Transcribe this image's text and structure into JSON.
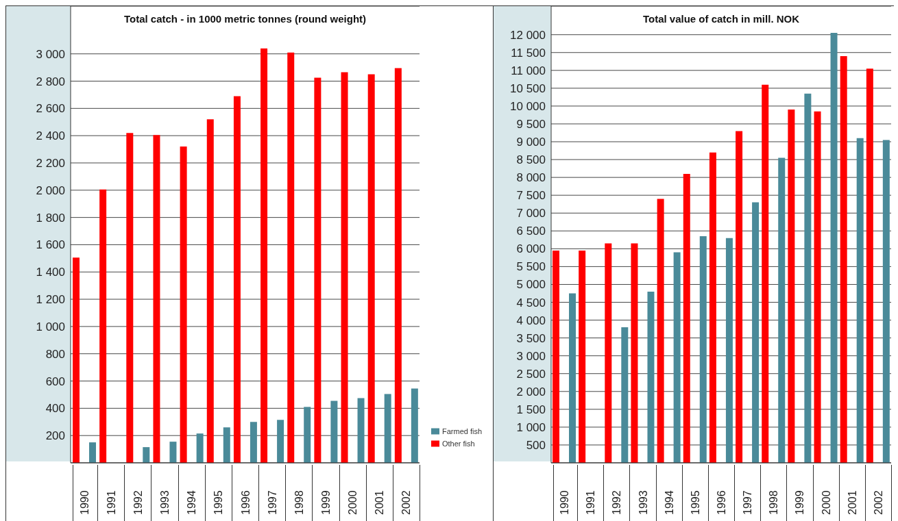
{
  "chart_data": [
    {
      "type": "bar",
      "title": "Total catch - in 1000 metric tonnes (round weight)",
      "categories": [
        "1990",
        "1991",
        "1992",
        "1993",
        "1994",
        "1995",
        "1996",
        "1997",
        "1998",
        "1999",
        "2000",
        "2001",
        "2002"
      ],
      "series": [
        {
          "name": "Other fish",
          "color": "#ff0000",
          "values": [
            1505,
            2005,
            2420,
            2405,
            2320,
            2520,
            2690,
            3040,
            3010,
            2825,
            2865,
            2850,
            2895
          ]
        },
        {
          "name": "Farmed fish",
          "color": "#4a8a99",
          "values": [
            150,
            null,
            115,
            155,
            215,
            260,
            300,
            315,
            410,
            455,
            475,
            505,
            545
          ]
        }
      ],
      "ylim": [
        0,
        3350
      ],
      "yticks": [
        200,
        400,
        600,
        800,
        {
          "value": 1000,
          "label": "1 000"
        },
        {
          "value": 1200,
          "label": "1 200"
        },
        {
          "value": 1400,
          "label": "1 400"
        },
        {
          "value": 1600,
          "label": "1 600"
        },
        {
          "value": 1800,
          "label": "1 800"
        },
        {
          "value": 2000,
          "label": "2 000"
        },
        {
          "value": 2200,
          "label": "2 200"
        },
        {
          "value": 2400,
          "label": "2 400"
        },
        {
          "value": 2600,
          "label": "2 600"
        },
        {
          "value": 2800,
          "label": "2 800"
        },
        {
          "value": 3000,
          "label": "3 000"
        }
      ],
      "grid": "y",
      "legend": "right"
    },
    {
      "type": "bar",
      "title": "Total value of catch in mill. NOK",
      "categories": [
        "1990",
        "1991",
        "1992",
        "1993",
        "1994",
        "1995",
        "1996",
        "1997",
        "1998",
        "1999",
        "2000",
        "2001",
        "2002"
      ],
      "series": [
        {
          "color": "#ff0000",
          "values": [
            5950,
            5950,
            6150,
            6150,
            7400,
            8100,
            8700,
            9300,
            10600,
            9900,
            9850,
            11400,
            11050
          ]
        },
        {
          "color": "#4a8a99",
          "values": [
            4750,
            null,
            3800,
            4800,
            5900,
            6350,
            6300,
            7300,
            8550,
            10350,
            12050,
            9100,
            9050
          ]
        }
      ],
      "ylim": [
        0,
        12800
      ],
      "yticks": [
        500,
        {
          "value": 1000,
          "label": "1 000"
        },
        {
          "value": 1500,
          "label": "1 500"
        },
        {
          "value": 2000,
          "label": "2 000"
        },
        {
          "value": 2500,
          "label": "2 500"
        },
        {
          "value": 3000,
          "label": "3 000"
        },
        {
          "value": 3500,
          "label": "3 500"
        },
        {
          "value": 4000,
          "label": "4 000"
        },
        {
          "value": 4500,
          "label": "4 500"
        },
        {
          "value": 5000,
          "label": "5 000"
        },
        {
          "value": 5500,
          "label": "5 500"
        },
        {
          "value": 6000,
          "label": "6 000"
        },
        {
          "value": 6500,
          "label": "6 500"
        },
        {
          "value": 7000,
          "label": "7 000"
        },
        {
          "value": 7500,
          "label": "7 500"
        },
        {
          "value": 8000,
          "label": "8 000"
        },
        {
          "value": 8500,
          "label": "8 500"
        },
        {
          "value": 9000,
          "label": "9 000"
        },
        {
          "value": 9500,
          "label": "9 500"
        },
        {
          "value": 10000,
          "label": "10 000"
        },
        {
          "value": 10500,
          "label": "10 500"
        },
        {
          "value": 11000,
          "label": "11 000"
        },
        {
          "value": 11500,
          "label": "11 500"
        },
        {
          "value": 12000,
          "label": "12 000"
        }
      ],
      "grid": "y"
    }
  ]
}
